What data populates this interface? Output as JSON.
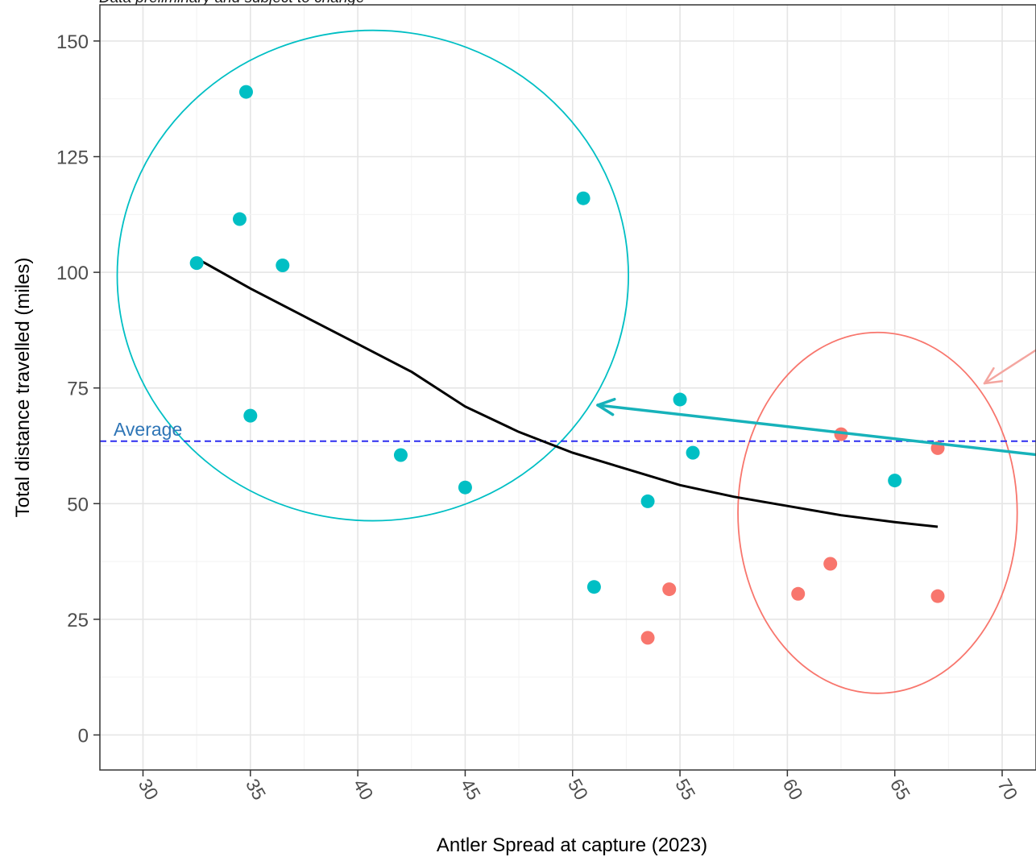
{
  "chart_data": {
    "type": "scatter",
    "title": "",
    "subtitle": "Data preliminary and subject to change",
    "xlabel": "Antler Spread at capture (2023)",
    "ylabel": "Total distance travelled (miles)",
    "xlim": [
      28,
      72
    ],
    "ylim": [
      -7.5,
      152
    ],
    "x_ticks": [
      30,
      35,
      40,
      45,
      50,
      55,
      60,
      65,
      70
    ],
    "y_ticks": [
      0,
      25,
      50,
      75,
      100,
      125,
      150
    ],
    "grid": true,
    "colors": {
      "teal": "#00bfc4",
      "salmon": "#f8766d",
      "trend": "#000000",
      "average": "#2d2df0",
      "average_label": "#2e75b6",
      "arrow_teal": "#17b2ba",
      "arrow_salmon": "#f4a6a0"
    },
    "series": [
      {
        "color": "teal",
        "points": [
          {
            "x": 32.5,
            "y": 102
          },
          {
            "x": 34.5,
            "y": 111.5
          },
          {
            "x": 34.8,
            "y": 139
          },
          {
            "x": 35,
            "y": 69
          },
          {
            "x": 36.5,
            "y": 101.5
          },
          {
            "x": 42,
            "y": 60.5
          },
          {
            "x": 45,
            "y": 53.5
          },
          {
            "x": 50.5,
            "y": 116
          },
          {
            "x": 51,
            "y": 32
          },
          {
            "x": 53.5,
            "y": 50.5
          },
          {
            "x": 55,
            "y": 72.5
          },
          {
            "x": 55.6,
            "y": 61
          },
          {
            "x": 65,
            "y": 55
          }
        ]
      },
      {
        "color": "salmon",
        "points": [
          {
            "x": 53.5,
            "y": 21
          },
          {
            "x": 54.5,
            "y": 31.5
          },
          {
            "x": 60.5,
            "y": 30.5
          },
          {
            "x": 62,
            "y": 37
          },
          {
            "x": 62.5,
            "y": 65
          },
          {
            "x": 67,
            "y": 62
          },
          {
            "x": 67,
            "y": 30
          }
        ]
      }
    ],
    "trend_line": [
      {
        "x": 32.5,
        "y": 103
      },
      {
        "x": 35,
        "y": 96.5
      },
      {
        "x": 37.5,
        "y": 90.5
      },
      {
        "x": 40,
        "y": 84.5
      },
      {
        "x": 42.5,
        "y": 78.5
      },
      {
        "x": 45,
        "y": 71
      },
      {
        "x": 47.5,
        "y": 65.5
      },
      {
        "x": 50,
        "y": 61
      },
      {
        "x": 52.5,
        "y": 57.5
      },
      {
        "x": 55,
        "y": 54
      },
      {
        "x": 57.5,
        "y": 51.5
      },
      {
        "x": 60,
        "y": 49.5
      },
      {
        "x": 62.5,
        "y": 47.5
      },
      {
        "x": 65,
        "y": 46
      },
      {
        "x": 67,
        "y": 45
      }
    ],
    "average": {
      "value": 63.5,
      "label": "Average"
    },
    "annotations": [
      {
        "type": "circle",
        "color": "teal",
        "cx": 40.7,
        "cy": 99.3,
        "rx_data": 11.9,
        "ry_data": 53
      },
      {
        "type": "circle",
        "color": "salmon",
        "cx": 64.2,
        "cy": 48,
        "rx_data": 6.5,
        "ry_data": 39
      }
    ]
  }
}
